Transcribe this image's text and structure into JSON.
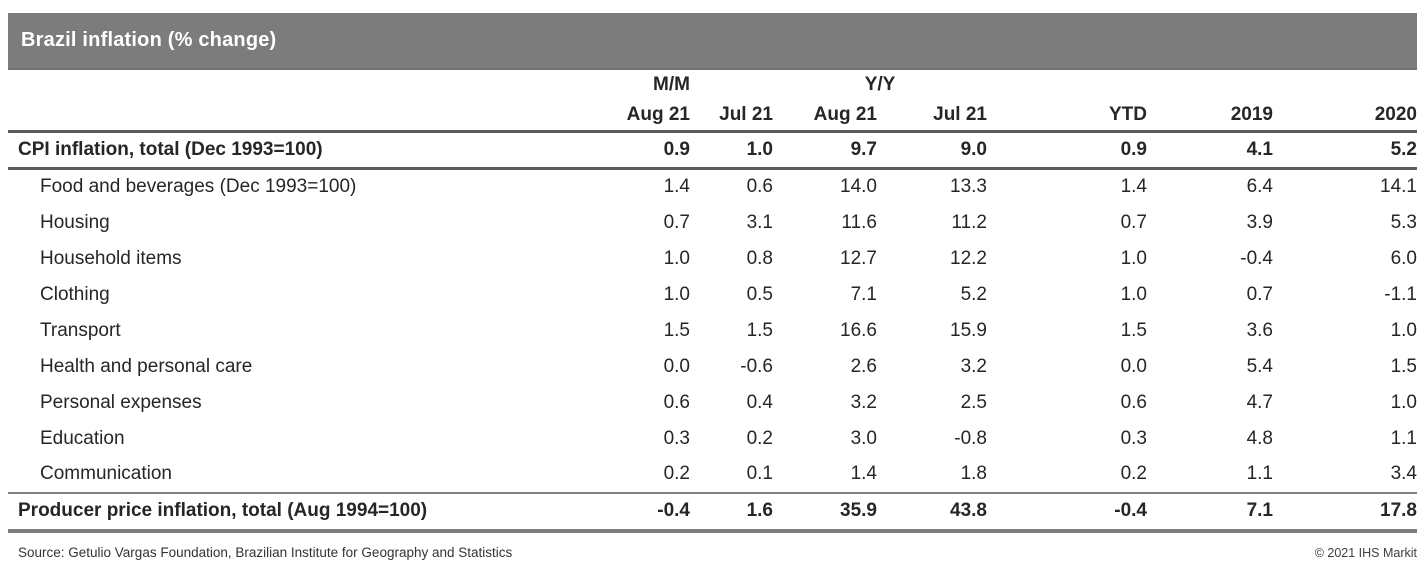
{
  "title": "Brazil inflation (% change)",
  "colors": {
    "header_bar": "#7c7c7c",
    "rule_dark": "#5c5c5c",
    "rule_gray": "#7f7f7f",
    "text": "#262626",
    "title_text": "#ffffff"
  },
  "table": {
    "group_headers": {
      "mm": "M/M",
      "yy": "Y/Y"
    },
    "column_headers": [
      "Aug 21",
      "Jul 21",
      "Aug 21",
      "Jul 21",
      "YTD",
      "2019",
      "2020"
    ],
    "rows": [
      {
        "label": "CPI inflation, total (Dec 1993=100)",
        "bold": true,
        "indent": false,
        "values": [
          "0.9",
          "1.0",
          "9.7",
          "9.0",
          "0.9",
          "4.1",
          "5.2"
        ]
      },
      {
        "label": "Food and beverages (Dec 1993=100)",
        "bold": false,
        "indent": true,
        "values": [
          "1.4",
          "0.6",
          "14.0",
          "13.3",
          "1.4",
          "6.4",
          "14.1"
        ]
      },
      {
        "label": "Housing",
        "bold": false,
        "indent": true,
        "values": [
          "0.7",
          "3.1",
          "11.6",
          "11.2",
          "0.7",
          "3.9",
          "5.3"
        ]
      },
      {
        "label": "Household items",
        "bold": false,
        "indent": true,
        "values": [
          "1.0",
          "0.8",
          "12.7",
          "12.2",
          "1.0",
          "-0.4",
          "6.0"
        ]
      },
      {
        "label": "Clothing",
        "bold": false,
        "indent": true,
        "values": [
          "1.0",
          "0.5",
          "7.1",
          "5.2",
          "1.0",
          "0.7",
          "-1.1"
        ]
      },
      {
        "label": "Transport",
        "bold": false,
        "indent": true,
        "values": [
          "1.5",
          "1.5",
          "16.6",
          "15.9",
          "1.5",
          "3.6",
          "1.0"
        ]
      },
      {
        "label": "Health and personal care",
        "bold": false,
        "indent": true,
        "values": [
          "0.0",
          "-0.6",
          "2.6",
          "3.2",
          "0.0",
          "5.4",
          "1.5"
        ]
      },
      {
        "label": "Personal expenses",
        "bold": false,
        "indent": true,
        "values": [
          "0.6",
          "0.4",
          "3.2",
          "2.5",
          "0.6",
          "4.7",
          "1.0"
        ]
      },
      {
        "label": "Education",
        "bold": false,
        "indent": true,
        "values": [
          "0.3",
          "0.2",
          "3.0",
          "-0.8",
          "0.3",
          "4.8",
          "1.1"
        ]
      },
      {
        "label": "Communication",
        "bold": false,
        "indent": true,
        "values": [
          "0.2",
          "0.1",
          "1.4",
          "1.8",
          "0.2",
          "1.1",
          "3.4"
        ]
      },
      {
        "label": "Producer price inflation, total (Aug 1994=100)",
        "bold": true,
        "indent": false,
        "values": [
          "-0.4",
          "1.6",
          "35.9",
          "43.8",
          "-0.4",
          "7.1",
          "17.8"
        ]
      }
    ]
  },
  "footer": {
    "source": "Source: Getulio Vargas Foundation, Brazilian Institute for Geography and Statistics",
    "copyright": "© 2021 IHS Markit"
  }
}
